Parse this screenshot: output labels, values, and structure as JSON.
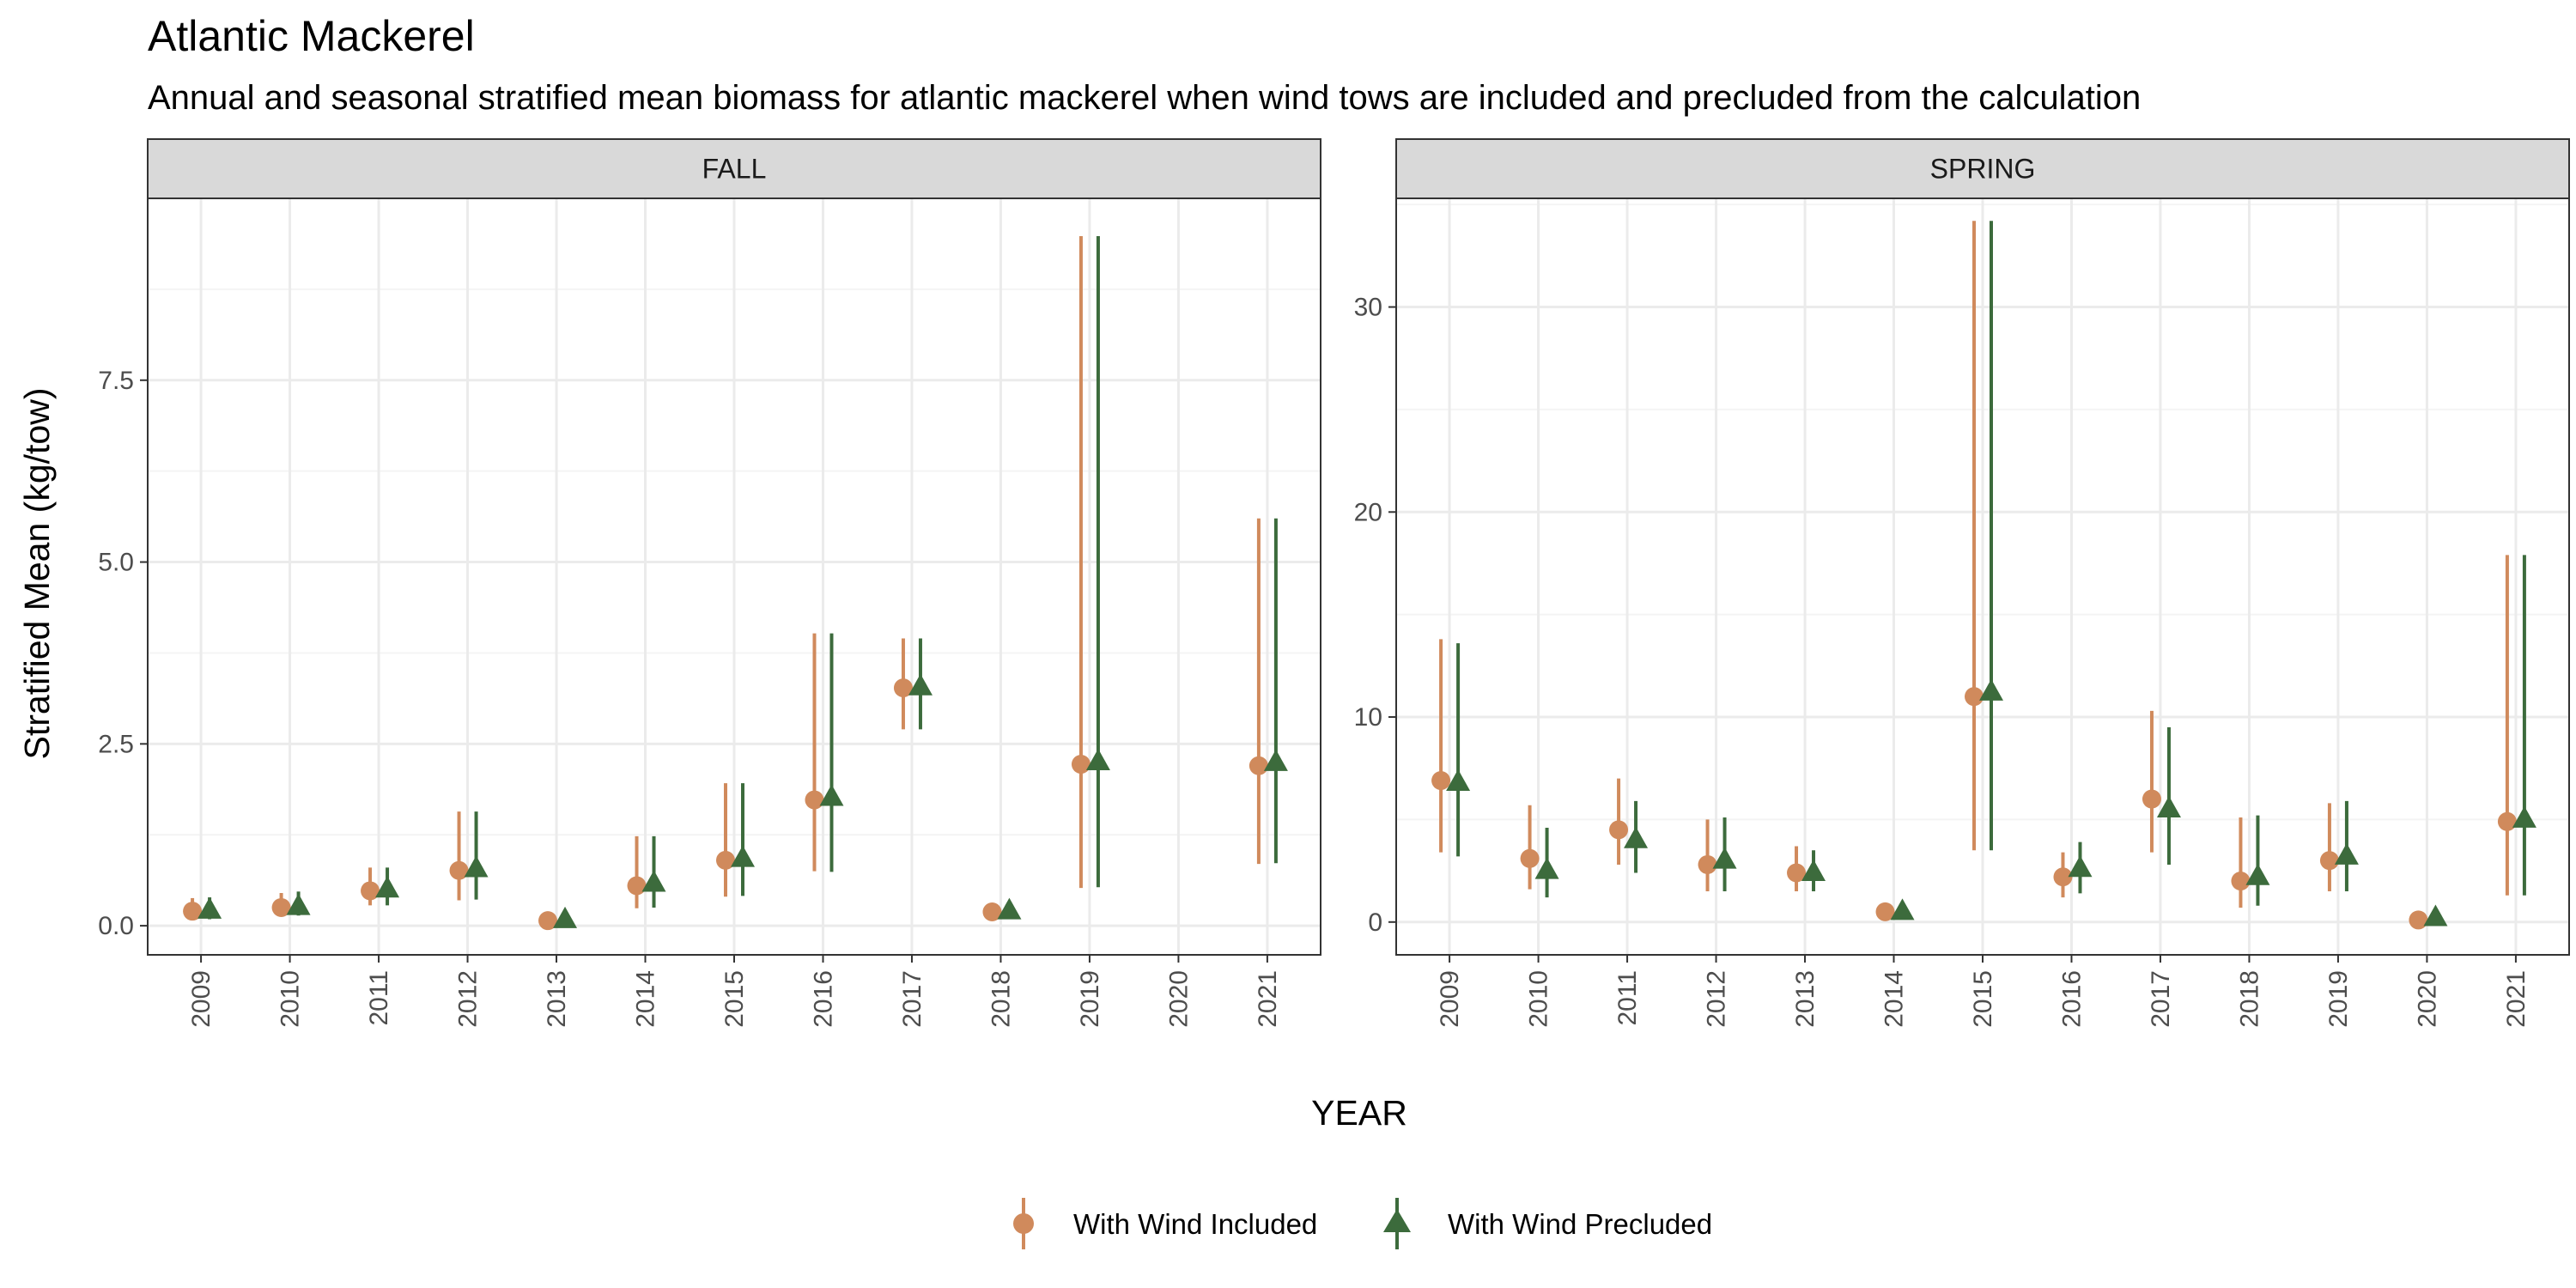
{
  "title": "Atlantic Mackerel",
  "subtitle": "Annual and seasonal stratified mean biomass for atlantic mackerel when wind tows are included and precluded from the calculation",
  "colors": {
    "included": "#d08a5c",
    "precluded": "#3c6b3c",
    "strip_bg": "#d9d9d9",
    "grid_major": "#ebebeb",
    "grid_minor": "#f4f4f4",
    "panel_border": "#333333"
  },
  "chart_data": {
    "type": "scatter",
    "xlabel": "YEAR",
    "ylabel": "Stratified Mean (kg/tow)",
    "legend": {
      "placement": "bottom",
      "entries": [
        {
          "key": "included",
          "label": "With Wind Included",
          "shape": "circle"
        },
        {
          "key": "precluded",
          "label": "With Wind Precluded",
          "shape": "triangle"
        }
      ]
    },
    "categories": [
      "2009",
      "2010",
      "2011",
      "2012",
      "2013",
      "2014",
      "2015",
      "2016",
      "2017",
      "2018",
      "2019",
      "2020",
      "2021"
    ],
    "panels": [
      {
        "label": "FALL",
        "ylim": [
          -0.4,
          10.0
        ],
        "yticks": [
          0.0,
          2.5,
          5.0,
          7.5
        ],
        "ytick_labels": [
          "0.0",
          "2.5",
          "5.0",
          "7.5"
        ],
        "series": [
          {
            "name": "With Wind Included",
            "key": "included",
            "values": [
              0.2,
              0.25,
              0.48,
              0.76,
              0.07,
              0.55,
              0.9,
              1.73,
              3.27,
              0.19,
              2.22,
              null,
              2.2
            ],
            "lower": [
              0.08,
              0.13,
              0.28,
              0.35,
              0.03,
              0.24,
              0.4,
              0.75,
              2.7,
              0.1,
              0.52,
              null,
              0.85
            ],
            "upper": [
              0.38,
              0.45,
              0.8,
              1.57,
              0.12,
              1.23,
              1.96,
              4.02,
              3.95,
              0.3,
              9.48,
              null,
              5.6
            ]
          },
          {
            "name": "With Wind Precluded",
            "key": "precluded",
            "values": [
              0.21,
              0.26,
              0.5,
              0.78,
              0.08,
              0.58,
              0.92,
              1.76,
              3.28,
              0.2,
              2.25,
              null,
              2.24
            ],
            "lower": [
              0.09,
              0.14,
              0.28,
              0.36,
              0.04,
              0.25,
              0.41,
              0.74,
              2.7,
              0.11,
              0.53,
              null,
              0.86
            ],
            "upper": [
              0.39,
              0.47,
              0.8,
              1.57,
              0.13,
              1.23,
              1.96,
              4.02,
              3.95,
              0.31,
              9.48,
              null,
              5.6
            ]
          }
        ]
      },
      {
        "label": "SPRING",
        "ylim": [
          -1.6,
          35.3
        ],
        "yticks": [
          0,
          10,
          20,
          30
        ],
        "ytick_labels": [
          "0",
          "10",
          "20",
          "30"
        ],
        "series": [
          {
            "name": "With Wind Included",
            "key": "included",
            "values": [
              6.9,
              3.1,
              4.5,
              2.8,
              2.4,
              0.5,
              11.0,
              2.2,
              6.0,
              2.0,
              3.0,
              0.1,
              4.9
            ],
            "lower": [
              3.4,
              1.6,
              2.8,
              1.5,
              1.5,
              0.2,
              3.5,
              1.2,
              3.4,
              0.7,
              1.5,
              0.0,
              1.3
            ],
            "upper": [
              13.8,
              5.7,
              7.0,
              5.0,
              3.7,
              0.8,
              34.2,
              3.4,
              10.3,
              5.1,
              5.8,
              0.3,
              17.9
            ]
          },
          {
            "name": "With Wind Precluded",
            "key": "precluded",
            "values": [
              6.8,
              2.5,
              4.0,
              3.0,
              2.4,
              0.5,
              11.2,
              2.6,
              5.5,
              2.2,
              3.2,
              0.2,
              5.0
            ],
            "lower": [
              3.2,
              1.2,
              2.4,
              1.5,
              1.5,
              0.2,
              3.5,
              1.4,
              2.8,
              0.8,
              1.5,
              0.0,
              1.3
            ],
            "upper": [
              13.6,
              4.6,
              5.9,
              5.1,
              3.5,
              0.8,
              34.2,
              3.9,
              9.5,
              5.2,
              5.9,
              0.3,
              17.9
            ]
          }
        ]
      }
    ]
  }
}
